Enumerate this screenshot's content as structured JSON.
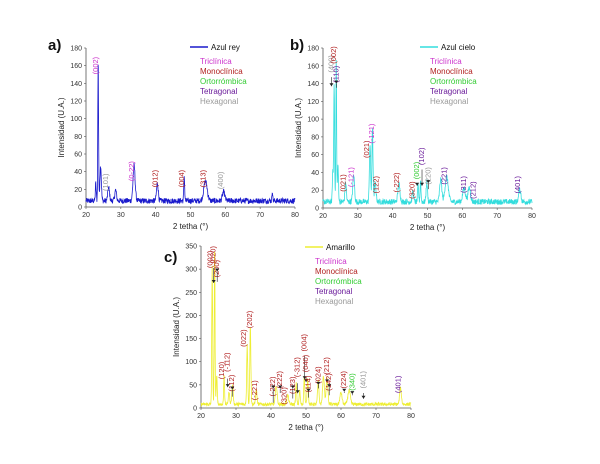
{
  "phase_colors": {
    "Triclinica": "#cc33cc",
    "Monoclinica": "#b22222",
    "Ortorrombica": "#33cc33",
    "Tetragonal": "#6a1b9a",
    "Hexagonal": "#999999"
  },
  "chart_data": [
    {
      "panel": "a)",
      "type": "line",
      "xlabel": "2 tetha (°)",
      "ylabel": "Intensidad (U.A.)",
      "xlim": [
        20,
        80
      ],
      "ylim": [
        0,
        180
      ],
      "xticks": [
        20,
        30,
        40,
        50,
        60,
        70,
        80
      ],
      "yticks": [
        0,
        20,
        40,
        60,
        80,
        100,
        120,
        140,
        160,
        180
      ],
      "legend": "top-right",
      "series": [
        {
          "name": "Azul rey",
          "color": "#1a1acc"
        }
      ],
      "phase_legend": [
        "Triclínica",
        "Monoclínica",
        "Ortorrómbica",
        "Tetragonal",
        "Hexagonal"
      ],
      "baseline": 7,
      "peaks": [
        {
          "x": 22.8,
          "y": 20,
          "w": 0.25
        },
        {
          "x": 23.5,
          "y": 160,
          "w": 0.22
        },
        {
          "x": 24.2,
          "y": 40,
          "w": 0.4
        },
        {
          "x": 26.5,
          "y": 15,
          "w": 0.5
        },
        {
          "x": 28.5,
          "y": 12,
          "w": 0.5
        },
        {
          "x": 33.8,
          "y": 40,
          "w": 0.6
        },
        {
          "x": 40.5,
          "y": 20,
          "w": 0.5
        },
        {
          "x": 48.2,
          "y": 28,
          "w": 0.25
        },
        {
          "x": 54.3,
          "y": 22,
          "w": 1.0
        },
        {
          "x": 59.5,
          "y": 10,
          "w": 0.7
        },
        {
          "x": 73.5,
          "y": 12,
          "w": 0.2
        }
      ],
      "annotations": [
        {
          "text": "(002)",
          "x": 23.5,
          "phase": "Triclinica",
          "label_y": 170
        },
        {
          "text": "(101)",
          "x": 26.3,
          "phase": "Hexagonal",
          "label_y": 38
        },
        {
          "text": "(0-22)",
          "x": 33.8,
          "phase": "Triclinica",
          "label_y": 52
        },
        {
          "text": "(012)",
          "x": 40.5,
          "phase": "Monoclinica",
          "label_y": 42
        },
        {
          "text": "(004)",
          "x": 48.2,
          "phase": "Monoclinica",
          "label_y": 42
        },
        {
          "text": "(313)",
          "x": 54.3,
          "phase": "Monoclinica",
          "label_y": 42
        },
        {
          "text": "(400)",
          "x": 59.3,
          "phase": "Hexagonal",
          "label_y": 40
        }
      ]
    },
    {
      "panel": "b)",
      "type": "line",
      "xlabel": "2 tetha (°)",
      "ylabel": "Intensidad (U.A.)",
      "xlim": [
        20,
        80
      ],
      "ylim": [
        0,
        180
      ],
      "xticks": [
        20,
        30,
        40,
        50,
        60,
        70,
        80
      ],
      "yticks": [
        0,
        20,
        40,
        60,
        80,
        100,
        120,
        140,
        160,
        180
      ],
      "legend": "top-right",
      "series": [
        {
          "name": "Azul cielo",
          "color": "#33dddd"
        }
      ],
      "phase_legend": [
        "Triclínica",
        "Monoclínica",
        "Ortorrómbica",
        "Tetragonal",
        "Hexagonal"
      ],
      "baseline": 7,
      "peaks": [
        {
          "x": 22.8,
          "y": 35,
          "w": 0.25
        },
        {
          "x": 23.2,
          "y": 135,
          "w": 0.25
        },
        {
          "x": 23.8,
          "y": 158,
          "w": 0.22
        },
        {
          "x": 24.3,
          "y": 40,
          "w": 0.3
        },
        {
          "x": 26.5,
          "y": 22,
          "w": 0.4
        },
        {
          "x": 28.8,
          "y": 30,
          "w": 0.5
        },
        {
          "x": 33.5,
          "y": 65,
          "w": 0.35
        },
        {
          "x": 34.2,
          "y": 83,
          "w": 0.3
        },
        {
          "x": 35.0,
          "y": 20,
          "w": 0.5
        },
        {
          "x": 41.8,
          "y": 20,
          "w": 0.6
        },
        {
          "x": 45.8,
          "y": 12,
          "w": 0.4
        },
        {
          "x": 47.3,
          "y": 18,
          "w": 0.3
        },
        {
          "x": 48.0,
          "y": 25,
          "w": 0.25
        },
        {
          "x": 49.8,
          "y": 22,
          "w": 0.4
        },
        {
          "x": 53.8,
          "y": 25,
          "w": 0.6
        },
        {
          "x": 55.5,
          "y": 28,
          "w": 0.9
        },
        {
          "x": 60.5,
          "y": 15,
          "w": 0.8
        },
        {
          "x": 62.0,
          "y": 16,
          "w": 0.7
        },
        {
          "x": 76.5,
          "y": 14,
          "w": 0.6
        }
      ],
      "annotations": [
        {
          "text": "(400)",
          "x": 23.0,
          "phase": "Hexagonal",
          "label_y": 172,
          "arrow_to": 137
        },
        {
          "text": "(002)",
          "x": 23.8,
          "phase": "Monoclinica",
          "label_y": 182
        },
        {
          "text": "(110)",
          "x": 24.4,
          "phase": "Tetragonal",
          "label_y": 160,
          "arrow_to": 140
        },
        {
          "text": "(021)",
          "x": 26.5,
          "phase": "Monoclinica",
          "label_y": 38
        },
        {
          "text": "(-121)",
          "x": 28.8,
          "phase": "Triclinica",
          "label_y": 46
        },
        {
          "text": "(021)",
          "x": 33.2,
          "phase": "Monoclinica",
          "label_y": 76
        },
        {
          "text": "(-121)",
          "x": 34.6,
          "phase": "Triclinica",
          "label_y": 95
        },
        {
          "text": "(122)",
          "x": 36.0,
          "phase": "Monoclinica",
          "label_y": 36
        },
        {
          "text": "(-222)",
          "x": 41.8,
          "phase": "Monoclinica",
          "label_y": 40
        },
        {
          "text": "(320)",
          "x": 46.2,
          "phase": "Monoclinica",
          "label_y": 30
        },
        {
          "text": "(002)",
          "x": 47.6,
          "phase": "Ortorrombica",
          "label_y": 52,
          "arrow_to": 25
        },
        {
          "text": "(102)",
          "x": 49.0,
          "phase": "Tetragonal",
          "label_y": 68,
          "arrow_to": 25
        },
        {
          "text": "(220)",
          "x": 50.8,
          "phase": "Hexagonal",
          "label_y": 46,
          "arrow_to": 28
        },
        {
          "text": "(221)",
          "x": 55.5,
          "phase": "Tetragonal",
          "label_y": 46
        },
        {
          "text": "(311)",
          "x": 61.0,
          "phase": "Tetragonal",
          "label_y": 36
        },
        {
          "text": "(212)",
          "x": 63.8,
          "phase": "Tetragonal",
          "label_y": 30
        },
        {
          "text": "(401)",
          "x": 76.6,
          "phase": "Tetragonal",
          "label_y": 36
        }
      ]
    },
    {
      "panel": "c)",
      "type": "line",
      "xlabel": "2 tetha (°)",
      "ylabel": "Intensidad (U.A.)",
      "xlim": [
        20,
        80
      ],
      "ylim": [
        0,
        350
      ],
      "xticks": [
        20,
        30,
        40,
        50,
        60,
        70,
        80
      ],
      "yticks": [
        0,
        50,
        100,
        150,
        200,
        250,
        300,
        350
      ],
      "legend": "top-right",
      "series": [
        {
          "name": "Amarillo",
          "color": "#eeee33"
        }
      ],
      "phase_legend": [
        "Triclínica",
        "Monoclínica",
        "Ortorrómbica",
        "Tetragonal",
        "Hexagonal"
      ],
      "baseline": 8,
      "peaks": [
        {
          "x": 23.2,
          "y": 300,
          "w": 0.25
        },
        {
          "x": 23.9,
          "y": 345,
          "w": 0.22
        },
        {
          "x": 24.5,
          "y": 60,
          "w": 0.3
        },
        {
          "x": 26.6,
          "y": 65,
          "w": 0.25
        },
        {
          "x": 28.0,
          "y": 25,
          "w": 0.4
        },
        {
          "x": 29.0,
          "y": 40,
          "w": 0.4
        },
        {
          "x": 33.2,
          "y": 130,
          "w": 0.3
        },
        {
          "x": 34.1,
          "y": 170,
          "w": 0.3
        },
        {
          "x": 35.8,
          "y": 30,
          "w": 0.4
        },
        {
          "x": 41.5,
          "y": 40,
          "w": 0.5
        },
        {
          "x": 44.8,
          "y": 20,
          "w": 0.5
        },
        {
          "x": 47.2,
          "y": 45,
          "w": 0.3
        },
        {
          "x": 48.2,
          "y": 30,
          "w": 0.3
        },
        {
          "x": 49.5,
          "y": 60,
          "w": 0.3
        },
        {
          "x": 50.5,
          "y": 55,
          "w": 0.35
        },
        {
          "x": 53.5,
          "y": 50,
          "w": 0.4
        },
        {
          "x": 55.0,
          "y": 60,
          "w": 0.5
        },
        {
          "x": 56.0,
          "y": 55,
          "w": 0.5
        },
        {
          "x": 60.0,
          "y": 25,
          "w": 0.6
        },
        {
          "x": 62.3,
          "y": 30,
          "w": 0.7
        },
        {
          "x": 77.0,
          "y": 35,
          "w": 0.5
        }
      ],
      "annotations": [
        {
          "text": "(002)",
          "x": 23.3,
          "phase": "Monoclinica",
          "label_y": 340
        },
        {
          "text": "(020)",
          "x": 24.2,
          "phase": "Monoclinica",
          "label_y": 350,
          "arrow_to": 270
        },
        {
          "text": "(200)",
          "x": 25.2,
          "phase": "Monoclinica",
          "label_y": 320,
          "arrow_to": 295
        },
        {
          "text": "(120)",
          "x": 26.6,
          "phase": "Monoclinica",
          "label_y": 100
        },
        {
          "text": "(-112)",
          "x": 28.2,
          "phase": "Monoclinica",
          "label_y": 120,
          "arrow_to": 45
        },
        {
          "text": "(112)",
          "x": 29.5,
          "phase": "Monoclinica",
          "label_y": 72,
          "arrow_to": 40
        },
        {
          "text": "(022)",
          "x": 32.8,
          "phase": "Monoclinica",
          "label_y": 170
        },
        {
          "text": "(202)",
          "x": 34.6,
          "phase": "Monoclinica",
          "label_y": 210
        },
        {
          "text": "(-221)",
          "x": 36.0,
          "phase": "Monoclinica",
          "label_y": 60
        },
        {
          "text": "(-222)",
          "x": 41.2,
          "phase": "Monoclinica",
          "label_y": 68,
          "arrow_to": 42
        },
        {
          "text": "(222)",
          "x": 43.2,
          "phase": "Monoclinica",
          "label_y": 80,
          "arrow_to": 42
        },
        {
          "text": "(320)",
          "x": 44.5,
          "phase": "Monoclinica",
          "label_y": 45
        },
        {
          "text": "(123)",
          "x": 46.8,
          "phase": "Monoclinica",
          "label_y": 68,
          "arrow_to": 42
        },
        {
          "text": "(-312)",
          "x": 48.2,
          "phase": "Monoclinica",
          "label_y": 110,
          "arrow_to": 32
        },
        {
          "text": "(004)",
          "x": 50.2,
          "phase": "Monoclinica",
          "label_y": 160,
          "arrow_to": 62
        },
        {
          "text": "(040)",
          "x": 50.6,
          "phase": "Monoclinica",
          "label_y": 115,
          "arrow_to": 56
        },
        {
          "text": "(114)",
          "x": 51.3,
          "phase": "Monoclinica",
          "label_y": 70,
          "arrow_to": 35
        },
        {
          "text": "(024)",
          "x": 54.1,
          "phase": "Monoclinica",
          "label_y": 90,
          "arrow_to": 50
        },
        {
          "text": "(212)",
          "x": 56.6,
          "phase": "Monoclinica",
          "label_y": 110,
          "arrow_to": 55
        },
        {
          "text": "(142)",
          "x": 57.2,
          "phase": "Monoclinica",
          "label_y": 75,
          "arrow_to": 45
        },
        {
          "text": "(224)",
          "x": 61.5,
          "phase": "Monoclinica",
          "label_y": 80,
          "arrow_to": 35
        },
        {
          "text": "(340)",
          "x": 63.8,
          "phase": "Ortorrombica",
          "label_y": 75,
          "arrow_to": 30
        },
        {
          "text": "(401)",
          "x": 67.0,
          "phase": "Hexagonal",
          "label_y": 80,
          "arrow_to": 20
        },
        {
          "text": "(401)",
          "x": 77.0,
          "phase": "Tetragonal",
          "label_y": 70
        }
      ]
    }
  ]
}
